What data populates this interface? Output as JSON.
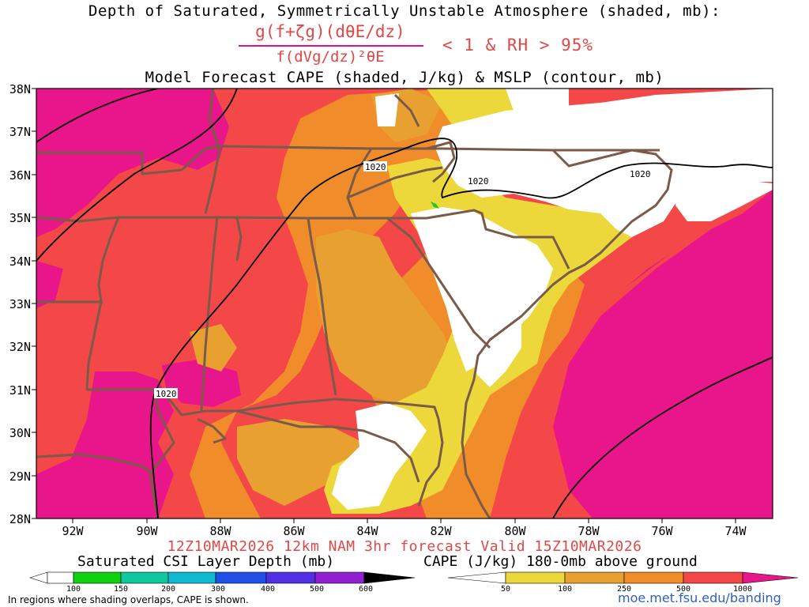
{
  "titles": {
    "line1": "Depth of Saturated, Symmetrically Unstable Atmosphere (shaded, mb):",
    "numerator": "g(f+ζg)(dθE/dz)",
    "denominator": "f(dVg/dz)²θE",
    "condition": "< 1 & RH > 95%",
    "line3": "Model Forecast CAPE (shaded, J/kg) & MSLP (contour, mb)",
    "valid": "12Z10MAR2026 12km NAM 3hr forecast Valid 15Z10MAR2026"
  },
  "map": {
    "lat_labels": [
      "38N",
      "37N",
      "36N",
      "35N",
      "34N",
      "33N",
      "32N",
      "31N",
      "30N",
      "29N",
      "28N"
    ],
    "lon_labels": [
      "92W",
      "90W",
      "88W",
      "86W",
      "84W",
      "82W",
      "80W",
      "78W",
      "76W",
      "74W"
    ],
    "isobar_labels": [
      "1020",
      "1020",
      "1020",
      "1020"
    ],
    "colors": {
      "cape_1000plus": "#e8168a",
      "cape_500": "#f44848",
      "cape_250": "#f08c2a",
      "cape_100": "#e8a030",
      "cape_50": "#ecd83a",
      "csi_100": "#20c820",
      "borders": "#7a5a48",
      "isobar": "#000000"
    }
  },
  "colorbars": {
    "csi": {
      "title": "Saturated CSI Layer Depth (mb)",
      "labels": [
        "100",
        "150",
        "200",
        "300",
        "400",
        "500",
        "600"
      ],
      "colors": [
        "#ffffff",
        "#10d010",
        "#10c8a0",
        "#10b8d0",
        "#2050e8",
        "#5030e0",
        "#9020d0",
        "#000000"
      ]
    },
    "cape": {
      "title": "CAPE (J/kg) 180-0mb above ground",
      "labels": [
        "50",
        "100",
        "250",
        "500",
        "1000"
      ],
      "colors": [
        "#ffffff",
        "#ecd83a",
        "#e8a030",
        "#f08c2a",
        "#f44848",
        "#e8168a"
      ]
    }
  },
  "footer": {
    "note": "In regions where shading overlaps, CAPE is shown.",
    "url": "moe.met.fsu.edu/banding"
  }
}
